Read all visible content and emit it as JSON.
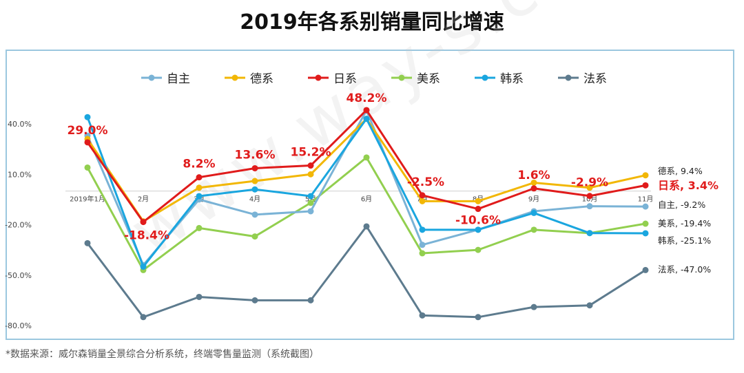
{
  "title": "2019年各系别销量同比增速",
  "footnote": "*数据来源：威尔森销量全景综合分析系统，终端零售量监测（系统截图）",
  "watermark": "www.way-s.cn",
  "chart_data": {
    "type": "line",
    "title": "2019年各系别销量同比增速",
    "categories": [
      "2019年1月",
      "2月",
      "3月",
      "4月",
      "5月",
      "6月",
      "7月",
      "8月",
      "9月",
      "10月",
      "11月"
    ],
    "ylim": [
      -80,
      40
    ],
    "yticks": [
      40,
      10,
      -20,
      -50,
      -80
    ],
    "ytick_labels": [
      "40.0%",
      "10.0%",
      "-20.0%",
      "-50.0%",
      "-80.0%"
    ],
    "grid": false,
    "legend": "top",
    "series": [
      {
        "name": "自主",
        "color": "#7ab3d6",
        "values": [
          33,
          -44,
          -5,
          -14,
          -12,
          48,
          -32,
          -23,
          -12,
          -9,
          -9.2
        ],
        "end_label": "自主, -9.2%"
      },
      {
        "name": "德系",
        "color": "#f2b705",
        "values": [
          31,
          -18,
          2,
          6,
          10,
          43,
          -6,
          -6,
          5,
          2,
          9.4
        ],
        "end_label": "德系, 9.4%"
      },
      {
        "name": "日系",
        "color": "#e01b1b",
        "values": [
          29,
          -18.4,
          8.2,
          13.6,
          15.2,
          48.2,
          -2.5,
          -10.6,
          1.6,
          -2.9,
          3.4
        ],
        "end_label": "日系, 3.4%",
        "data_labels": [
          "29.0%",
          "-18.4%",
          "8.2%",
          "13.6%",
          "15.2%",
          "48.2%",
          "-2.5%",
          "-10.6%",
          "1.6%",
          "-2.9%"
        ]
      },
      {
        "name": "美系",
        "color": "#92cf4f",
        "values": [
          14,
          -47,
          -22,
          -27,
          -7,
          20,
          -37,
          -35,
          -23,
          -25,
          -19.4
        ],
        "end_label": "美系, -19.4%"
      },
      {
        "name": "韩系",
        "color": "#1aa6df",
        "values": [
          44,
          -45,
          -3,
          1,
          -3,
          43,
          -23,
          -23,
          -13,
          -25,
          -25.1
        ],
        "end_label": "韩系, -25.1%"
      },
      {
        "name": "法系",
        "color": "#5d7b8e",
        "values": [
          -31,
          -75,
          -63,
          -65,
          -65,
          -21,
          -74,
          -75,
          -69,
          -68,
          -47.0
        ],
        "end_label": "法系, -47.0%"
      }
    ]
  }
}
